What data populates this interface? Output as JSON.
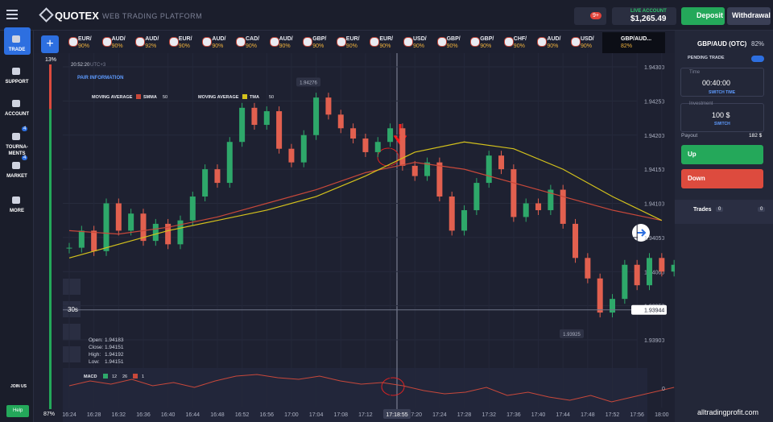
{
  "header": {
    "logo": "QUOTEX",
    "platform": "WEB TRADING PLATFORM",
    "notifications": "9+",
    "account_label": "LIVE ACCOUNT",
    "balance": "$1,265.49",
    "deposit": "Deposit",
    "withdrawal": "Withdrawal"
  },
  "sidebar": {
    "items": [
      {
        "label": "TRADE"
      },
      {
        "label": "SUPPORT"
      },
      {
        "label": "ACCOUNT"
      },
      {
        "label": "TOURNA-MENTS",
        "badge": "4"
      },
      {
        "label": "MARKET",
        "badge": "4"
      },
      {
        "label": "MORE"
      }
    ],
    "join": "JOIN US",
    "help": "Help"
  },
  "assets": [
    {
      "name": "EUR/",
      "payout": "90%"
    },
    {
      "name": "AUD/",
      "payout": "90%"
    },
    {
      "name": "AUD/",
      "payout": "92%"
    },
    {
      "name": "EUR/",
      "payout": "90%"
    },
    {
      "name": "AUD/",
      "payout": "90%"
    },
    {
      "name": "CAD/",
      "payout": "90%"
    },
    {
      "name": "AUD/",
      "payout": "90%"
    },
    {
      "name": "GBP/",
      "payout": "90%"
    },
    {
      "name": "EUR/",
      "payout": "90%"
    },
    {
      "name": "EUR/",
      "payout": "90%"
    },
    {
      "name": "USD/",
      "payout": "90%"
    },
    {
      "name": "GBP/",
      "payout": "90%"
    },
    {
      "name": "GBP/",
      "payout": "90%"
    },
    {
      "name": "CHF/",
      "payout": "90%"
    },
    {
      "name": "AUD/",
      "payout": "90%"
    },
    {
      "name": "USD/",
      "payout": "90%"
    }
  ],
  "active_asset": {
    "name": "GBP/AUD...",
    "payout": "82%"
  },
  "chart_info": {
    "clock": "20:52:20",
    "timezone": "UTC+3",
    "pair_info": "PAIR INFORMATION",
    "timeframe": "30s",
    "crosshair_time": "17:18:55"
  },
  "sentiment": {
    "values": [
      13,
      87
    ],
    "value_labels": [
      "13%",
      "87%"
    ]
  },
  "chart_data": {
    "type": "candlestick",
    "close": [
      1.94035,
      1.9406,
      1.9403,
      1.941,
      1.9406,
      1.94085,
      1.94045,
      1.9407,
      1.9404,
      1.94075,
      1.9411,
      1.9415,
      1.9413,
      1.9419,
      1.9424,
      1.94215,
      1.94235,
      1.9418,
      1.9416,
      1.942,
      1.94255,
      1.9423,
      1.9421,
      1.94195,
      1.94175,
      1.9419,
      1.9421,
      1.94155,
      1.9414,
      1.9416,
      1.9411,
      1.9406,
      1.9409,
      1.9413,
      1.9417,
      1.9415,
      1.9408,
      1.941,
      1.9409,
      1.9412,
      1.9407,
      1.9402,
      1.9399,
      1.9394,
      1.9396,
      1.9401,
      1.9398,
      1.9402,
      1.94,
      1.9401
    ],
    "up_color": "#2ea86a",
    "down_color": "#e2604f",
    "ylim": [
      1.939,
      1.943
    ],
    "yticks": [
      {
        "value": 1.943,
        "label": "1.94300"
      },
      {
        "value": 1.9425,
        "label": "1.94250"
      },
      {
        "value": 1.942,
        "label": "1.94200"
      },
      {
        "value": 1.9415,
        "label": "1.94150"
      },
      {
        "value": 1.941,
        "label": "1.94100"
      },
      {
        "value": 1.9405,
        "label": "1.94050"
      },
      {
        "value": 1.94,
        "label": "1.94000"
      },
      {
        "value": 1.9395,
        "label": "1.93950"
      },
      {
        "value": 1.939,
        "label": "1.93900"
      }
    ],
    "time_labels": [
      "16:24",
      "16:28",
      "16:32",
      "16:36",
      "16:40",
      "16:44",
      "16:48",
      "16:52",
      "16:56",
      "17:00",
      "17:04",
      "17:08",
      "17:12",
      "17:16",
      "17:20",
      "17:24",
      "17:28",
      "17:32",
      "17:36",
      "17:40",
      "17:44",
      "17:48",
      "17:52",
      "17:56",
      "18:00"
    ],
    "grid": true,
    "max_label": 1.94276,
    "min_label": 1.93925,
    "current_price": 1.93944,
    "ohlc": {
      "labels": [
        "Open:",
        "Close:",
        "High:",
        "Low:"
      ],
      "values": [
        1.94183,
        1.94151,
        1.94192,
        1.94151
      ]
    },
    "indicators": [
      {
        "title": "MOVING AVERAGE",
        "name": "SMMA",
        "period": 50,
        "color": "#c8483a",
        "values": [
          1.9406,
          1.94055,
          1.94065,
          1.9408,
          1.941,
          1.9412,
          1.94145,
          1.9416,
          1.9415,
          1.9413,
          1.9411,
          1.9409,
          1.94075
        ]
      },
      {
        "title": "MOVING AVERAGE",
        "name": "TMA",
        "period": 50,
        "color": "#d4c21c",
        "values": [
          1.9402,
          1.9404,
          1.9406,
          1.94075,
          1.9409,
          1.9411,
          1.9414,
          1.94175,
          1.9419,
          1.9418,
          1.9415,
          1.9411,
          1.94075
        ]
      }
    ],
    "macd": {
      "name": "MACD",
      "fast": 12,
      "slow": 26,
      "signal": 1,
      "color": "#c8483a",
      "ylim": [
        -1,
        1
      ],
      "zero": 0,
      "values": [
        0.2,
        0.5,
        0.3,
        0.6,
        0.2,
        0.4,
        0.1,
        0.5,
        0.8,
        0.9,
        0.7,
        0.6,
        0.8,
        0.5,
        0.3,
        0.4,
        0.2,
        -0.1,
        -0.3,
        -0.2,
        0.1,
        -0.4,
        -0.2,
        -0.5,
        -0.7,
        -0.4,
        -0.8,
        -0.5,
        -0.2,
        0.1
      ]
    }
  },
  "panel": {
    "asset": "GBP/AUD (OTC)",
    "payout": "82%",
    "pending": "PENDING TRADE",
    "time_label": "Time",
    "time": "00:40:00",
    "switch_time": "SWITCH TIME",
    "investment_label": "Investment",
    "investment": "100 $",
    "switch": "SWITCH",
    "payout_label": "Payout",
    "payout_value": "182 $",
    "up": "Up",
    "down": "Down",
    "trades": "Trades",
    "trades_count": "0",
    "trades_count2": "0"
  },
  "watermark": "alltradingprofit.com"
}
